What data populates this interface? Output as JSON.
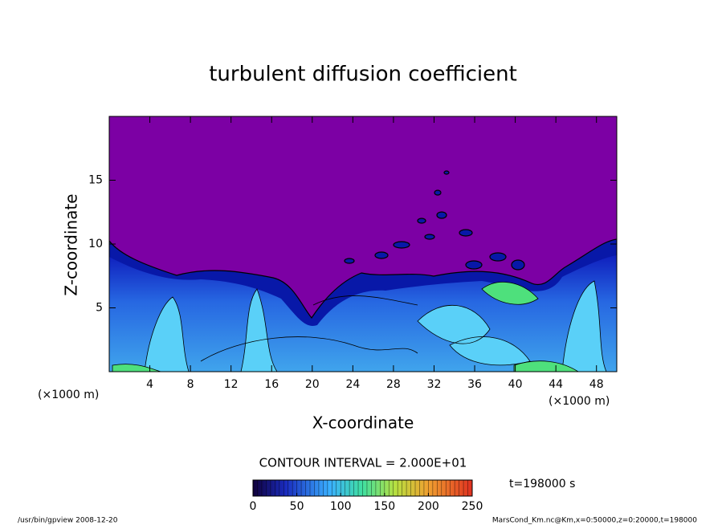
{
  "chart_data": {
    "type": "contour",
    "title": "turbulent diffusion coefficient",
    "xlabel": "X-coordinate",
    "ylabel": "Z-coordinate",
    "xunit": "(×1000 m)",
    "yunit": "(×1000 m)",
    "xlim": [
      0,
      50
    ],
    "xticks": [
      4,
      8,
      12,
      16,
      20,
      24,
      28,
      32,
      36,
      40,
      44,
      48
    ],
    "ylim": [
      0,
      20
    ],
    "yticks": [
      5,
      10,
      15
    ],
    "colorbar": {
      "lim": [
        0,
        250
      ],
      "ticks": [
        0,
        50,
        100,
        150,
        200,
        250
      ]
    },
    "contour_interval": "CONTOUR INTERVAL = 2.000E+01",
    "time": "t=198000 s",
    "footer_left": "/usr/bin/gpview  2008-12-20",
    "footer_right": "MarsCond_Km.nc@Km,x=0:50000,z=0:20000,t=198000"
  }
}
